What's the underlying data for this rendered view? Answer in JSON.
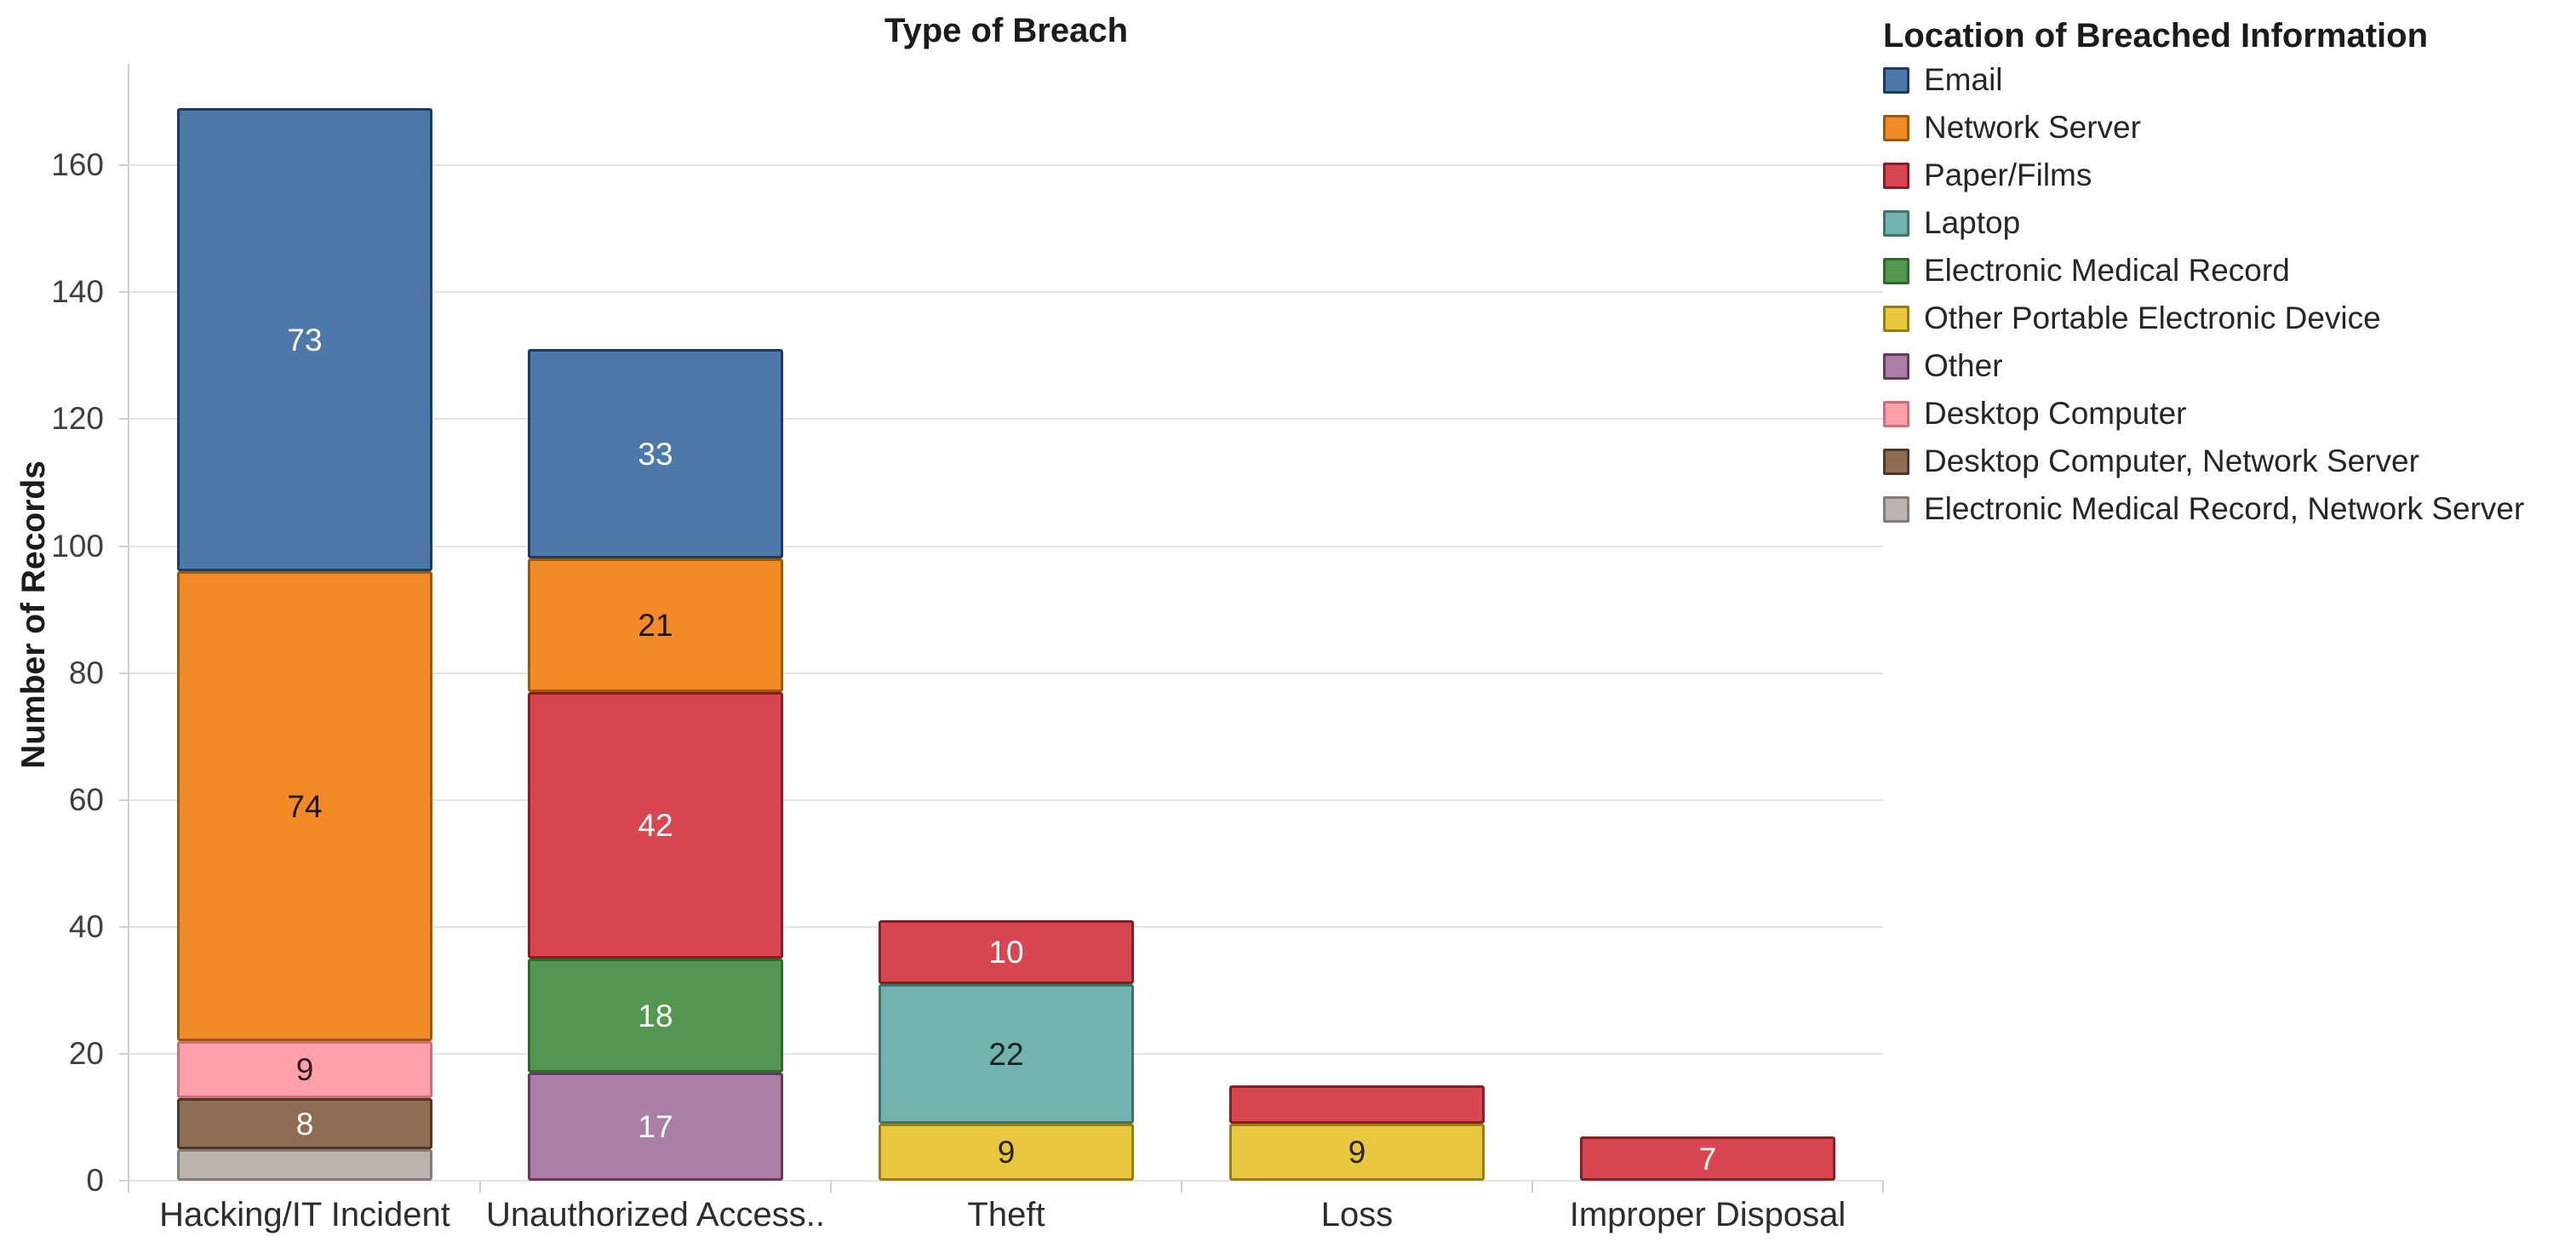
{
  "chart_data": {
    "type": "bar",
    "stacked": true,
    "title": "Type of Breach",
    "ylabel": "Number of Records",
    "legend_title": "Location of Breached Information",
    "legend_position": "right",
    "grid": "horizontal",
    "ylim": [
      0,
      176
    ],
    "yticks": [
      0,
      20,
      40,
      60,
      80,
      100,
      120,
      140,
      160
    ],
    "label_min_value": 7,
    "categories": [
      "Hacking/IT Incident",
      "Unauthorized Access..",
      "Theft",
      "Loss",
      "Improper Disposal"
    ],
    "series": [
      {
        "name": "Email",
        "color": "#4d79a8",
        "border": "#1e3c61",
        "label_color": "#ffffff",
        "values": [
          73,
          33,
          0,
          0,
          0
        ]
      },
      {
        "name": "Network Server",
        "color": "#f08b28",
        "border": "#9c5a06",
        "label_color": "#201400",
        "values": [
          74,
          21,
          0,
          0,
          0
        ]
      },
      {
        "name": "Paper/Films",
        "color": "#d8464f",
        "border": "#8c1c24",
        "label_color": "#ffffff",
        "values": [
          0,
          42,
          10,
          6,
          7
        ]
      },
      {
        "name": "Laptop",
        "color": "#74b2ad",
        "border": "#3c7470",
        "label_color": "#0d2624",
        "values": [
          0,
          0,
          22,
          0,
          0
        ]
      },
      {
        "name": "Electronic Medical Record",
        "color": "#539750",
        "border": "#2b6a2a",
        "label_color": "#ffffff",
        "values": [
          0,
          18,
          0,
          0,
          0
        ]
      },
      {
        "name": "Other Portable Electronic Device",
        "color": "#e8c83e",
        "border": "#967d14",
        "label_color": "#2a2200",
        "values": [
          0,
          0,
          9,
          9,
          0
        ]
      },
      {
        "name": "Other",
        "color": "#ab7ea6",
        "border": "#66395f",
        "label_color": "#ffffff",
        "values": [
          0,
          17,
          0,
          0,
          0
        ]
      },
      {
        "name": "Desktop Computer",
        "color": "#ffa0ab",
        "border": "#cc6f7b",
        "label_color": "#33171a",
        "values": [
          9,
          0,
          0,
          0,
          0
        ]
      },
      {
        "name": "Desktop Computer, Network Server",
        "color": "#8e6d54",
        "border": "#503826",
        "label_color": "#ffffff",
        "values": [
          8,
          0,
          0,
          0,
          0
        ]
      },
      {
        "name": "Electronic Medical Record, Network Server",
        "color": "#bab3ae",
        "border": "#837b76",
        "label_color": "#2e2a28",
        "values": [
          5,
          0,
          0,
          0,
          0
        ]
      }
    ]
  }
}
